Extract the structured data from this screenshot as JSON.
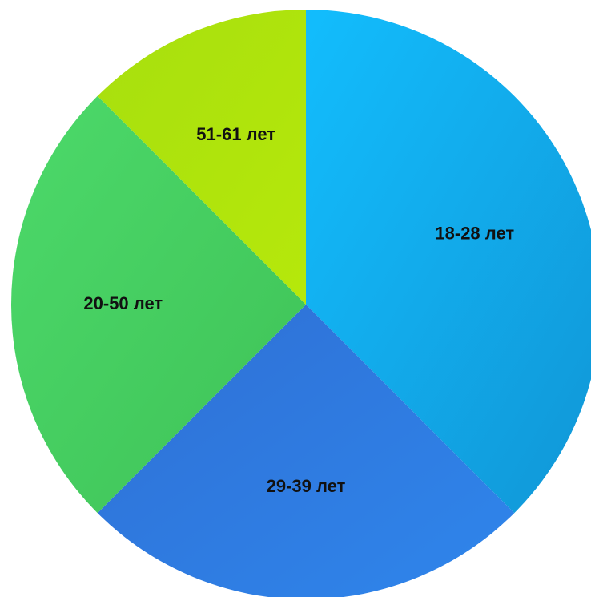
{
  "chart_data": {
    "type": "pie",
    "title": "",
    "start_angle_deg": 0,
    "direction": "clockwise",
    "slices": [
      {
        "label": "18-28 лет",
        "value": 37.5,
        "color_start": "#12bdfd",
        "color_end": "#1196d6"
      },
      {
        "label": "29-39 лет",
        "value": 25.0,
        "color_start": "#2f6fd4",
        "color_end": "#2f86ec"
      },
      {
        "label": "20-50 лет",
        "value": 25.0,
        "color_start": "#4cd96a",
        "color_end": "#3fc257"
      },
      {
        "label": "51-61 лет",
        "value": 12.5,
        "color_start": "#a7df0e",
        "color_end": "#b6e80b"
      }
    ]
  }
}
